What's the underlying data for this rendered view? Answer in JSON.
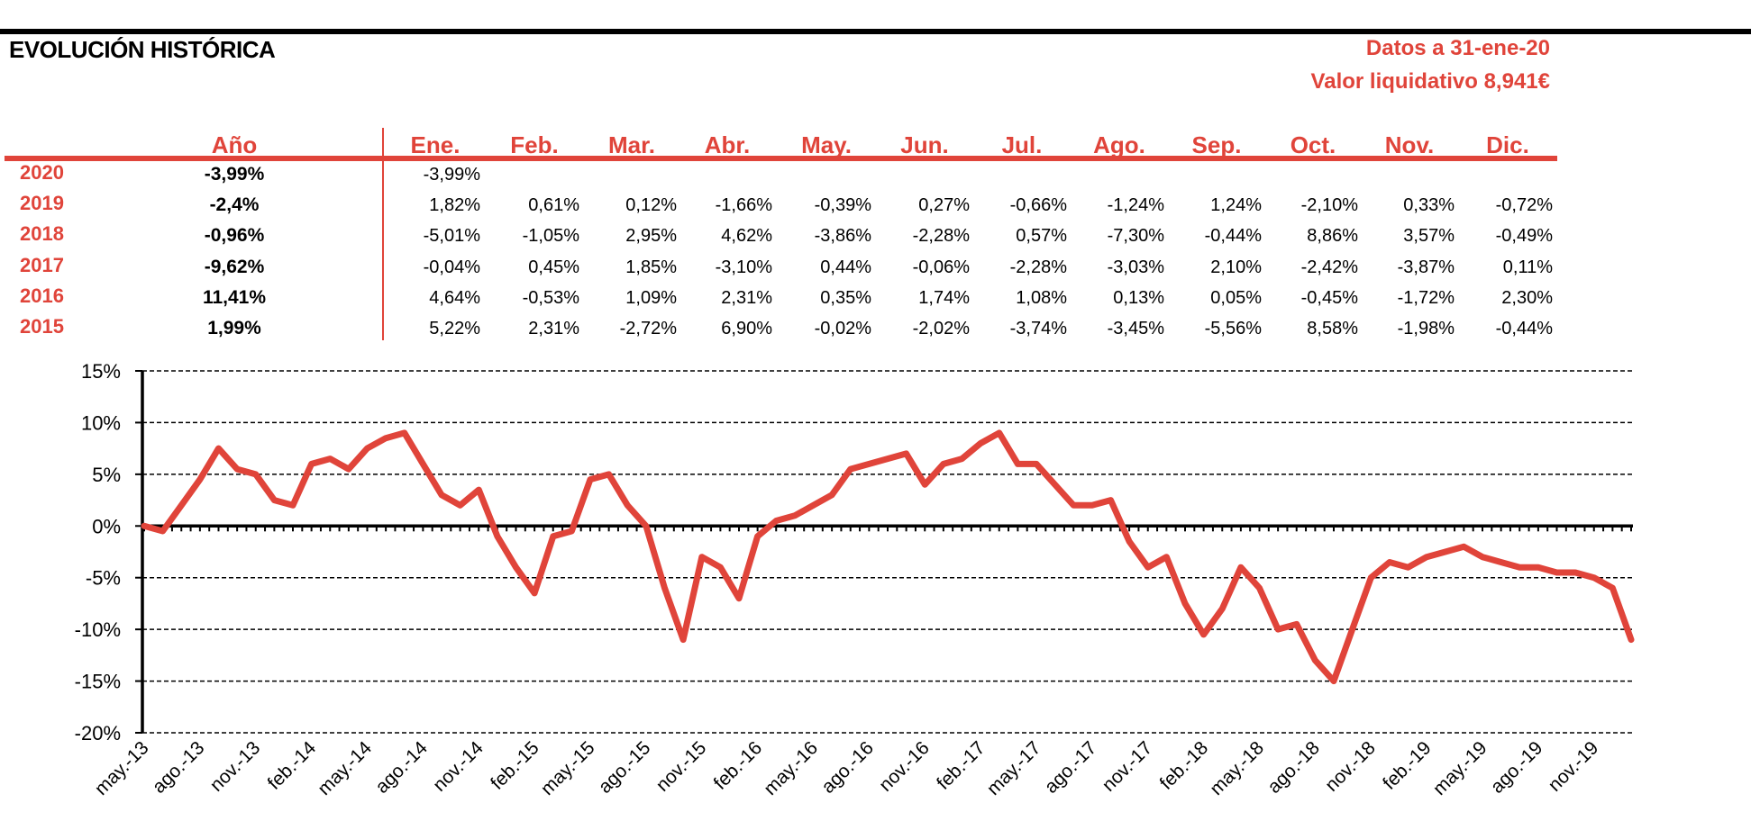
{
  "header": {
    "title": "EVOLUCIÓN HISTÓRICA",
    "date_line": "Datos a 31-ene-20",
    "nav_line": "Valor liquidativo 8,941€"
  },
  "table": {
    "year_header": "Año",
    "months": [
      "Ene.",
      "Feb.",
      "Mar.",
      "Abr.",
      "May.",
      "Jun.",
      "Jul.",
      "Ago.",
      "Sep.",
      "Oct.",
      "Nov.",
      "Dic."
    ],
    "rows": [
      {
        "year": "2020",
        "annual": "-3,99%",
        "values": [
          "-3,99%",
          "",
          "",
          "",
          "",
          "",
          "",
          "",
          "",
          "",
          "",
          ""
        ]
      },
      {
        "year": "2019",
        "annual": "-2,4%",
        "values": [
          "1,82%",
          "0,61%",
          "0,12%",
          "-1,66%",
          "-0,39%",
          "0,27%",
          "-0,66%",
          "-1,24%",
          "1,24%",
          "-2,10%",
          "0,33%",
          "-0,72%"
        ]
      },
      {
        "year": "2018",
        "annual": "-0,96%",
        "values": [
          "-5,01%",
          "-1,05%",
          "2,95%",
          "4,62%",
          "-3,86%",
          "-2,28%",
          "0,57%",
          "-7,30%",
          "-0,44%",
          "8,86%",
          "3,57%",
          "-0,49%"
        ]
      },
      {
        "year": "2017",
        "annual": "-9,62%",
        "values": [
          "-0,04%",
          "0,45%",
          "1,85%",
          "-3,10%",
          "0,44%",
          "-0,06%",
          "-2,28%",
          "-3,03%",
          "2,10%",
          "-2,42%",
          "-3,87%",
          "0,11%"
        ]
      },
      {
        "year": "2016",
        "annual": "11,41%",
        "values": [
          "4,64%",
          "-0,53%",
          "1,09%",
          "2,31%",
          "0,35%",
          "1,74%",
          "1,08%",
          "0,13%",
          "0,05%",
          "-0,45%",
          "-1,72%",
          "2,30%"
        ]
      },
      {
        "year": "2015",
        "annual": "1,99%",
        "values": [
          "5,22%",
          "2,31%",
          "-2,72%",
          "6,90%",
          "-0,02%",
          "-2,02%",
          "-3,74%",
          "-3,45%",
          "-5,56%",
          "8,58%",
          "-1,98%",
          "-0,44%"
        ]
      }
    ]
  },
  "colors": {
    "accent": "#e0443a",
    "axis": "#000000"
  },
  "chart_data": {
    "type": "line",
    "ylim": [
      -20,
      15
    ],
    "yticks": [
      15,
      10,
      5,
      0,
      -5,
      -10,
      -15,
      -20
    ],
    "ytick_labels": [
      "15%",
      "10%",
      "5%",
      "0%",
      "-5%",
      "-10%",
      "-15%",
      "-20%"
    ],
    "grid": "horizontal-dashed",
    "xtick_labels": [
      "may.-13",
      "ago.-13",
      "nov.-13",
      "feb.-14",
      "may.-14",
      "ago.-14",
      "nov.-14",
      "feb.-15",
      "may.-15",
      "ago.-15",
      "nov.-15",
      "feb.-16",
      "may.-16",
      "ago.-16",
      "nov.-16",
      "feb.-17",
      "may.-17",
      "ago.-17",
      "nov.-17",
      "feb.-18",
      "may.-18",
      "ago.-18",
      "nov.-18",
      "feb.-19",
      "may.-19",
      "ago.-19",
      "nov.-19"
    ],
    "series": [
      {
        "x": [
          "2013-05",
          "2013-06",
          "2013-07",
          "2013-08",
          "2013-09",
          "2013-10",
          "2013-11",
          "2013-12",
          "2014-01",
          "2014-02",
          "2014-03",
          "2014-04",
          "2014-05",
          "2014-06",
          "2014-07",
          "2014-08",
          "2014-09",
          "2014-10",
          "2014-11",
          "2014-12",
          "2015-01",
          "2015-02",
          "2015-03",
          "2015-04",
          "2015-05",
          "2015-06",
          "2015-07",
          "2015-08",
          "2015-09",
          "2015-10",
          "2015-11",
          "2015-12",
          "2016-01",
          "2016-02",
          "2016-03",
          "2016-04",
          "2016-05",
          "2016-06",
          "2016-07",
          "2016-08",
          "2016-09",
          "2016-10",
          "2016-11",
          "2016-12",
          "2017-01",
          "2017-02",
          "2017-03",
          "2017-04",
          "2017-05",
          "2017-06",
          "2017-07",
          "2017-08",
          "2017-09",
          "2017-10",
          "2017-11",
          "2017-12",
          "2018-01",
          "2018-02",
          "2018-03",
          "2018-04",
          "2018-05",
          "2018-06",
          "2018-07",
          "2018-08",
          "2018-09",
          "2018-10",
          "2018-11",
          "2018-12",
          "2019-01",
          "2019-02",
          "2019-03",
          "2019-04",
          "2019-05",
          "2019-06",
          "2019-07",
          "2019-08",
          "2019-09",
          "2019-10",
          "2019-11",
          "2019-12",
          "2020-01"
        ],
        "values": [
          0,
          -0.5,
          2,
          4.5,
          7.5,
          5.5,
          5,
          2.5,
          2,
          6,
          6.5,
          5.5,
          7.5,
          8.5,
          9,
          6,
          3,
          2,
          3.5,
          -1,
          -4,
          -6.5,
          -1,
          -0.5,
          4.5,
          5,
          2,
          0,
          -6,
          -11,
          -3,
          -4,
          -7,
          -1,
          0.5,
          1,
          2,
          3,
          5.5,
          6,
          6.5,
          7,
          4,
          6,
          6.5,
          8,
          9,
          6,
          6,
          4,
          2,
          2,
          2.5,
          -1.5,
          -4,
          -3,
          -7.5,
          -10.5,
          -8,
          -4,
          -6,
          -10,
          -9.5,
          -13,
          -15,
          -10,
          -5,
          -3.5,
          -4,
          -3,
          -2.5,
          -2,
          -3,
          -3.5,
          -4,
          -4,
          -4.5,
          -4.5,
          -5,
          -6,
          -11
        ]
      }
    ]
  }
}
